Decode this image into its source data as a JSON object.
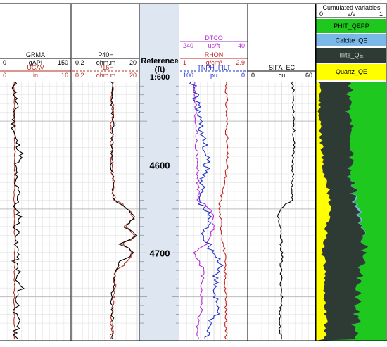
{
  "chart_data": {
    "type": "line",
    "depth_track": {
      "title_line1": "Reference",
      "title_line2": "(ft)",
      "scale": "1:600",
      "depth_ticks": [
        4600,
        4700
      ],
      "depth_range": [
        4505,
        4800
      ]
    },
    "tracks": [
      {
        "curves": [
          {
            "name": "GRMA",
            "min_label": "0",
            "unit": "gAPI",
            "max_label": "150",
            "color": "#000000",
            "dashed": false,
            "range": [
              0,
              150
            ],
            "depth": [
              4510,
              4530,
              4550,
              4570,
              4580,
              4590,
              4600,
              4610,
              4620,
              4630,
              4640,
              4650,
              4660,
              4670,
              4680,
              4690,
              4700,
              4710,
              4720,
              4730,
              4740,
              4750,
              4760,
              4770,
              4780,
              4790,
              4800
            ],
            "values": [
              30,
              34,
              28,
              32,
              40,
              46,
              30,
              35,
              28,
              44,
              36,
              30,
              45,
              32,
              40,
              30,
              42,
              30,
              40,
              32,
              46,
              34,
              38,
              30,
              42,
              32,
              38
            ]
          },
          {
            "name": "UCAV",
            "min_label": "6",
            "unit": "in",
            "max_label": "16",
            "color": "#b03020",
            "dashed": false,
            "range": [
              6,
              16
            ],
            "depth": [
              4510,
              4600,
              4650,
              4700,
              4750,
              4800
            ],
            "values": [
              8.0,
              8.1,
              8.0,
              8.1,
              8.0,
              8.1
            ]
          }
        ]
      },
      {
        "curves": [
          {
            "name": "P40H",
            "min_label": "0.2",
            "unit": "ohm.m",
            "max_label": "20",
            "color": "#000000",
            "dashed": false,
            "range": [
              0.2,
              20
            ],
            "depth": [
              4510,
              4550,
              4600,
              4640,
              4650,
              4660,
              4670,
              4680,
              4690,
              4700,
              4710,
              4720,
              4740,
              4760,
              4780,
              4800
            ],
            "values": [
              3.0,
              3.2,
              3.0,
              3.4,
              8,
              15,
              6,
              16,
              5,
              14,
              5,
              4,
              3.2,
              3.0,
              3.3,
              3.0
            ]
          },
          {
            "name": "P16H",
            "min_label": "0.2",
            "unit": "ohm.m",
            "max_label": "20",
            "color": "#b03020",
            "dashed": true,
            "range": [
              0.2,
              20
            ],
            "depth": [
              4510,
              4600,
              4640,
              4650,
              4660,
              4670,
              4680,
              4690,
              4700,
              4720,
              4760,
              4800
            ],
            "values": [
              3.1,
              3.0,
              3.5,
              9,
              14,
              7,
              15,
              6,
              13,
              4,
              3.1,
              3.0
            ]
          }
        ]
      },
      {
        "curves": [
          {
            "name": "DTCO",
            "min_label": "240",
            "unit": "us/ft",
            "max_label": "40",
            "color": "#b030d0",
            "dashed": false,
            "range": [
              240,
              40
            ],
            "depth": [
              4510,
              4550,
              4600,
              4640,
              4650,
              4670,
              4690,
              4700,
              4720,
              4740,
              4760,
              4780,
              4800
            ],
            "values": [
              195,
              192,
              190,
              185,
              150,
              140,
              160,
              200,
              170,
              180,
              175,
              190,
              185
            ]
          },
          {
            "name": "RHON",
            "min_label": "1",
            "unit": "g/cm³",
            "max_label": "2.9",
            "color": "#c02020",
            "dashed": false,
            "range": [
              1,
              2.9
            ],
            "depth": [
              4510,
              4600,
              4650,
              4700,
              4750,
              4800
            ],
            "values": [
              2.3,
              2.32,
              2.1,
              2.25,
              2.28,
              2.3
            ]
          },
          {
            "name": "TNPH_FILT",
            "min_label": "100",
            "unit": "pu",
            "max_label": "0",
            "color": "#1a2ec8",
            "dashed": true,
            "range": [
              100,
              0
            ],
            "depth": [
              4510,
              4550,
              4600,
              4640,
              4660,
              4680,
              4700,
              4710,
              4720,
              4740,
              4760,
              4780,
              4800
            ],
            "values": [
              80,
              70,
              60,
              72,
              55,
              65,
              50,
              40,
              45,
              50,
              42,
              55,
              60
            ]
          }
        ]
      },
      {
        "curves": [
          {
            "name": "SIFA_EC",
            "min_label": "0",
            "unit": "cu",
            "max_label": "60",
            "color": "#000000",
            "dashed": false,
            "range": [
              0,
              60
            ],
            "depth": [
              4510,
              4550,
              4600,
              4640,
              4650,
              4660,
              4680,
              4700,
              4720,
              4750,
              4780,
              4800
            ],
            "values": [
              40,
              41,
              40,
              39,
              28,
              27,
              29,
              30,
              29,
              30,
              28,
              29
            ]
          }
        ]
      },
      {
        "title": "Cumulated variables",
        "min_label": "0",
        "unit": "v/v",
        "max_label": "1",
        "layers": [
          {
            "name": "PHIT_QEPP",
            "color": "#1ec81e"
          },
          {
            "name": "Calcite_QE",
            "color": "#7ab8e8"
          },
          {
            "name": "Illite_QE",
            "color": "#2e3a34"
          },
          {
            "name": "Quartz_QE",
            "color": "#ffff00"
          }
        ],
        "depth": [
          4510,
          4550,
          4600,
          4630,
          4650,
          4670,
          4690,
          4700,
          4720,
          4750,
          4780,
          4800
        ],
        "quartz_fraction": [
          0.05,
          0.05,
          0.1,
          0.18,
          0.2,
          0.15,
          0.12,
          0.1,
          0.13,
          0.12,
          0.14,
          0.13
        ],
        "illite_fraction": [
          0.43,
          0.45,
          0.4,
          0.36,
          0.38,
          0.52,
          0.55,
          0.6,
          0.5,
          0.48,
          0.42,
          0.44
        ],
        "calcite_fraction": [
          0.0,
          0.0,
          0.0,
          0.01,
          0.03,
          0.01,
          0.0,
          0.0,
          0.0,
          0.0,
          0.0,
          0.0
        ]
      }
    ]
  }
}
